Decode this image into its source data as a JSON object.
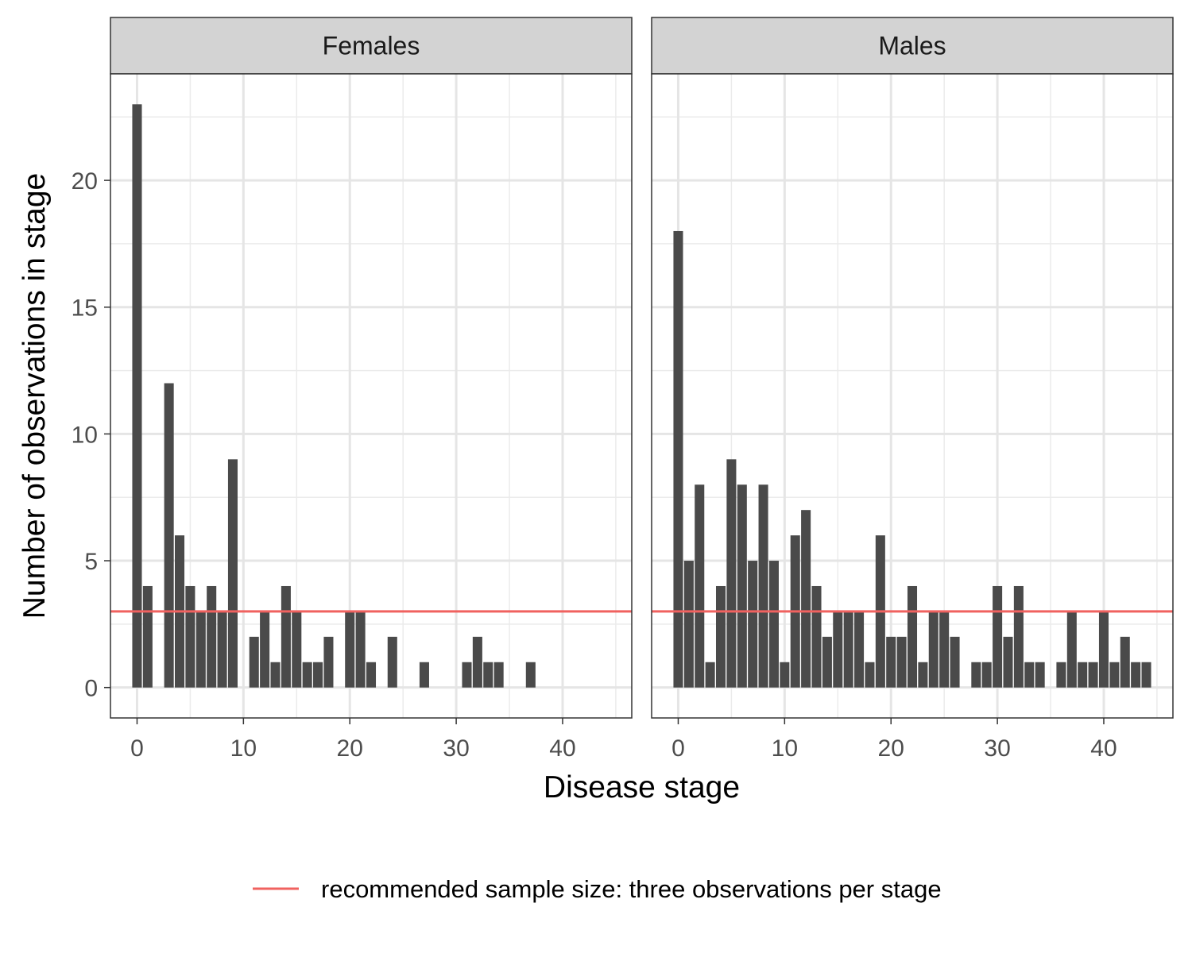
{
  "chart_data": {
    "type": "bar",
    "xlabel": "Disease stage",
    "ylabel": "Number of observations in stage",
    "xlim": [
      -2.5,
      46.5
    ],
    "ylim": [
      -1.2,
      24.2
    ],
    "xticks": [
      0,
      10,
      20,
      30,
      40
    ],
    "yticks": [
      0,
      5,
      10,
      15,
      20
    ],
    "grid": true,
    "bar_color": "#4a4a4a",
    "reference_line": {
      "y": 3,
      "color": "#f0625f",
      "label": "recommended sample size: three observations per stage"
    },
    "legend_position": "bottom",
    "panels": [
      {
        "title": "Females",
        "x": [
          0,
          1,
          3,
          4,
          5,
          6,
          7,
          8,
          9,
          11,
          12,
          13,
          14,
          15,
          16,
          17,
          18,
          20,
          21,
          22,
          24,
          27,
          31,
          32,
          33,
          34,
          37
        ],
        "values": [
          23,
          4,
          12,
          6,
          4,
          3,
          4,
          3,
          9,
          2,
          3,
          1,
          4,
          3,
          1,
          1,
          2,
          3,
          3,
          1,
          2,
          1,
          1,
          2,
          1,
          1,
          1
        ]
      },
      {
        "title": "Males",
        "x": [
          0,
          1,
          2,
          3,
          4,
          5,
          6,
          7,
          8,
          9,
          10,
          11,
          12,
          13,
          14,
          15,
          16,
          17,
          18,
          19,
          20,
          21,
          22,
          23,
          24,
          25,
          26,
          28,
          29,
          30,
          31,
          32,
          33,
          34,
          36,
          37,
          38,
          39,
          40,
          41,
          42,
          43,
          44
        ],
        "values": [
          18,
          5,
          8,
          1,
          4,
          9,
          8,
          5,
          8,
          5,
          1,
          6,
          7,
          4,
          2,
          3,
          3,
          3,
          1,
          6,
          2,
          2,
          4,
          1,
          3,
          3,
          2,
          1,
          1,
          4,
          2,
          4,
          1,
          1,
          1,
          3,
          1,
          1,
          3,
          1,
          2,
          1,
          1
        ]
      }
    ]
  }
}
